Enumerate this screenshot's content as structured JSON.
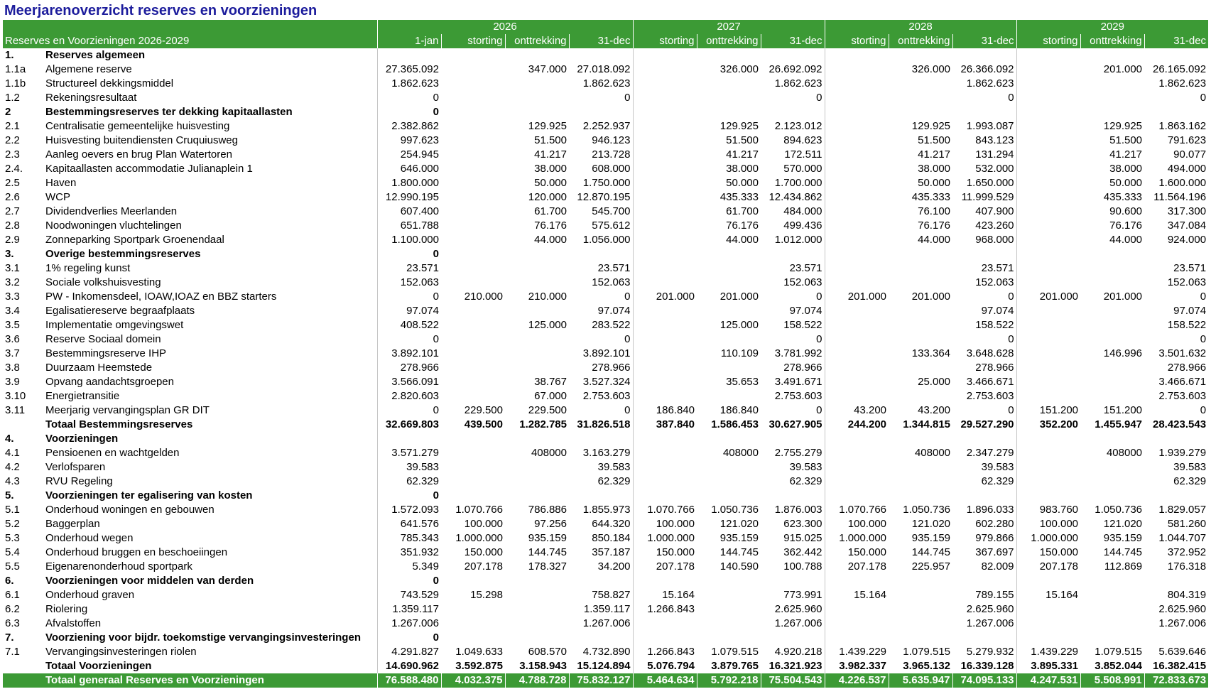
{
  "title": "Meerjarenoverzicht reserves en voorzieningen",
  "header": {
    "years": [
      "2026",
      "2027",
      "2028",
      "2029"
    ],
    "label": "Reserves en Voorzieningen 2026-2029",
    "columns": [
      "1-jan",
      "storting",
      "onttrekking",
      "31-dec",
      "storting",
      "onttrekking",
      "31-dec",
      "storting",
      "onttrekking",
      "31-dec",
      "storting",
      "onttrekking",
      "31-dec"
    ]
  },
  "rows": [
    {
      "code": "1.",
      "name": "Reserves algemeen",
      "bold": true,
      "cells": [
        null,
        null,
        null,
        null,
        null,
        null,
        null,
        null,
        null,
        null,
        null,
        null,
        null
      ]
    },
    {
      "code": "1.1a",
      "name": "Algemene reserve",
      "cells": [
        "27.365.092",
        null,
        "347.000",
        "27.018.092",
        null,
        "326.000",
        "26.692.092",
        null,
        "326.000",
        "26.366.092",
        null,
        "201.000",
        "26.165.092"
      ]
    },
    {
      "code": "1.1b",
      "name": "Structureel dekkingsmiddel",
      "cells": [
        "1.862.623",
        null,
        null,
        "1.862.623",
        null,
        null,
        "1.862.623",
        null,
        null,
        "1.862.623",
        null,
        null,
        "1.862.623"
      ]
    },
    {
      "code": "1.2",
      "name": "Rekeningsresultaat",
      "cells": [
        "0",
        null,
        null,
        "0",
        null,
        null,
        "0",
        null,
        null,
        "0",
        null,
        null,
        "0"
      ]
    },
    {
      "code": "2",
      "name": "Bestemmingsreserves ter dekking kapitaallasten",
      "bold": true,
      "cells": [
        "0",
        null,
        null,
        null,
        null,
        null,
        null,
        null,
        null,
        null,
        null,
        null,
        null
      ]
    },
    {
      "code": "2.1",
      "name": "Centralisatie gemeentelijke huisvesting",
      "cells": [
        "2.382.862",
        null,
        "129.925",
        "2.252.937",
        null,
        "129.925",
        "2.123.012",
        null,
        "129.925",
        "1.993.087",
        null,
        "129.925",
        "1.863.162"
      ]
    },
    {
      "code": "2.2",
      "name": "Huisvesting buitendiensten Cruquiusweg",
      "cells": [
        "997.623",
        null,
        "51.500",
        "946.123",
        null,
        "51.500",
        "894.623",
        null,
        "51.500",
        "843.123",
        null,
        "51.500",
        "791.623"
      ]
    },
    {
      "code": "2.3",
      "name": "Aanleg oevers en brug Plan Watertoren",
      "cells": [
        "254.945",
        null,
        "41.217",
        "213.728",
        null,
        "41.217",
        "172.511",
        null,
        "41.217",
        "131.294",
        null,
        "41.217",
        "90.077"
      ]
    },
    {
      "code": "2.4.",
      "name": "Kapitaallasten accommodatie Julianaplein 1",
      "cells": [
        "646.000",
        null,
        "38.000",
        "608.000",
        null,
        "38.000",
        "570.000",
        null,
        "38.000",
        "532.000",
        null,
        "38.000",
        "494.000"
      ]
    },
    {
      "code": "2.5",
      "name": "Haven",
      "cells": [
        "1.800.000",
        null,
        "50.000",
        "1.750.000",
        null,
        "50.000",
        "1.700.000",
        null,
        "50.000",
        "1.650.000",
        null,
        "50.000",
        "1.600.000"
      ]
    },
    {
      "code": "2.6",
      "name": "WCP",
      "cells": [
        "12.990.195",
        null,
        "120.000",
        "12.870.195",
        null,
        "435.333",
        "12.434.862",
        null,
        "435.333",
        "11.999.529",
        null,
        "435.333",
        "11.564.196"
      ]
    },
    {
      "code": "2.7",
      "name": "Dividendverlies Meerlanden",
      "cells": [
        "607.400",
        null,
        "61.700",
        "545.700",
        null,
        "61.700",
        "484.000",
        null,
        "76.100",
        "407.900",
        null,
        "90.600",
        "317.300"
      ]
    },
    {
      "code": "2.8",
      "name": "Noodwoningen vluchtelingen",
      "cells": [
        "651.788",
        null,
        "76.176",
        "575.612",
        null,
        "76.176",
        "499.436",
        null,
        "76.176",
        "423.260",
        null,
        "76.176",
        "347.084"
      ]
    },
    {
      "code": "2.9",
      "name": "Zonneparking Sportpark Groenendaal",
      "cells": [
        "1.100.000",
        null,
        "44.000",
        "1.056.000",
        null,
        "44.000",
        "1.012.000",
        null,
        "44.000",
        "968.000",
        null,
        "44.000",
        "924.000"
      ]
    },
    {
      "code": "3.",
      "name": "Overige bestemmingsreserves",
      "bold": true,
      "cells": [
        "0",
        null,
        null,
        null,
        null,
        null,
        null,
        null,
        null,
        null,
        null,
        null,
        null
      ]
    },
    {
      "code": "3.1",
      "name": "1% regeling kunst",
      "cells": [
        "23.571",
        null,
        null,
        "23.571",
        null,
        null,
        "23.571",
        null,
        null,
        "23.571",
        null,
        null,
        "23.571"
      ]
    },
    {
      "code": "3.2",
      "name": "Sociale volkshuisvesting",
      "cells": [
        "152.063",
        null,
        null,
        "152.063",
        null,
        null,
        "152.063",
        null,
        null,
        "152.063",
        null,
        null,
        "152.063"
      ]
    },
    {
      "code": "3.3",
      "name": "PW - Inkomensdeel, IOAW,IOAZ en BBZ starters",
      "cells": [
        "0",
        "210.000",
        "210.000",
        "0",
        "201.000",
        "201.000",
        "0",
        "201.000",
        "201.000",
        "0",
        "201.000",
        "201.000",
        "0"
      ]
    },
    {
      "code": "3.4",
      "name": "Egalisatiereserve begraafplaats",
      "cells": [
        "97.074",
        null,
        null,
        "97.074",
        null,
        null,
        "97.074",
        null,
        null,
        "97.074",
        null,
        null,
        "97.074"
      ]
    },
    {
      "code": "3.5",
      "name": "Implementatie omgevingswet",
      "cells": [
        "408.522",
        null,
        "125.000",
        "283.522",
        null,
        "125.000",
        "158.522",
        null,
        null,
        "158.522",
        null,
        null,
        "158.522"
      ]
    },
    {
      "code": "3.6",
      "name": "Reserve Sociaal domein",
      "cells": [
        "0",
        null,
        null,
        "0",
        null,
        null,
        "0",
        null,
        null,
        "0",
        null,
        null,
        "0"
      ]
    },
    {
      "code": "3.7",
      "name": "Bestemmingsreserve IHP",
      "cells": [
        "3.892.101",
        null,
        null,
        "3.892.101",
        null,
        "110.109",
        "3.781.992",
        null,
        "133.364",
        "3.648.628",
        null,
        "146.996",
        "3.501.632"
      ]
    },
    {
      "code": "3.8",
      "name": "Duurzaam Heemstede",
      "cells": [
        "278.966",
        null,
        null,
        "278.966",
        null,
        null,
        "278.966",
        null,
        null,
        "278.966",
        null,
        null,
        "278.966"
      ]
    },
    {
      "code": "3.9",
      "name": "Opvang aandachtsgroepen",
      "cells": [
        "3.566.091",
        null,
        "38.767",
        "3.527.324",
        null,
        "35.653",
        "3.491.671",
        null,
        "25.000",
        "3.466.671",
        null,
        null,
        "3.466.671"
      ]
    },
    {
      "code": "3.10",
      "name": "Energietransitie",
      "cells": [
        "2.820.603",
        null,
        "67.000",
        "2.753.603",
        null,
        null,
        "2.753.603",
        null,
        null,
        "2.753.603",
        null,
        null,
        "2.753.603"
      ]
    },
    {
      "code": "3.11",
      "name": "Meerjarig vervangingsplan GR DIT",
      "cells": [
        "0",
        "229.500",
        "229.500",
        "0",
        "186.840",
        "186.840",
        "0",
        "43.200",
        "43.200",
        "0",
        "151.200",
        "151.200",
        "0"
      ]
    },
    {
      "name": "Totaal Bestemmingsreserves",
      "bold": true,
      "cells": [
        "32.669.803",
        "439.500",
        "1.282.785",
        "31.826.518",
        "387.840",
        "1.586.453",
        "30.627.905",
        "244.200",
        "1.344.815",
        "29.527.290",
        "352.200",
        "1.455.947",
        "28.423.543"
      ]
    },
    {
      "code": "4.",
      "name": "Voorzieningen",
      "bold": true,
      "cells": [
        null,
        null,
        null,
        null,
        null,
        null,
        null,
        null,
        null,
        null,
        null,
        null,
        null
      ]
    },
    {
      "code": "4.1",
      "name": "Pensioenen en wachtgelden",
      "cells": [
        "3.571.279",
        null,
        "408000",
        "3.163.279",
        null,
        "408000",
        "2.755.279",
        null,
        "408000",
        "2.347.279",
        null,
        "408000",
        "1.939.279"
      ]
    },
    {
      "code": "4.2",
      "name": "Verlofsparen",
      "cells": [
        "39.583",
        null,
        null,
        "39.583",
        null,
        null,
        "39.583",
        null,
        null,
        "39.583",
        null,
        null,
        "39.583"
      ]
    },
    {
      "code": "4.3",
      "name": "RVU Regeling",
      "cells": [
        "62.329",
        null,
        null,
        "62.329",
        null,
        null,
        "62.329",
        null,
        null,
        "62.329",
        null,
        null,
        "62.329"
      ]
    },
    {
      "code": "5.",
      "name": "Voorzieningen ter egalisering van kosten",
      "bold": true,
      "cells": [
        "0",
        null,
        null,
        null,
        null,
        null,
        null,
        null,
        null,
        null,
        null,
        null,
        null
      ]
    },
    {
      "code": "5.1",
      "name": "Onderhoud woningen en gebouwen",
      "cells": [
        "1.572.093",
        "1.070.766",
        "786.886",
        "1.855.973",
        "1.070.766",
        "1.050.736",
        "1.876.003",
        "1.070.766",
        "1.050.736",
        "1.896.033",
        "983.760",
        "1.050.736",
        "1.829.057"
      ]
    },
    {
      "code": "5.2",
      "name": "Baggerplan",
      "cells": [
        "641.576",
        "100.000",
        "97.256",
        "644.320",
        "100.000",
        "121.020",
        "623.300",
        "100.000",
        "121.020",
        "602.280",
        "100.000",
        "121.020",
        "581.260"
      ]
    },
    {
      "code": "5.3",
      "name": "Onderhoud wegen",
      "cells": [
        "785.343",
        "1.000.000",
        "935.159",
        "850.184",
        "1.000.000",
        "935.159",
        "915.025",
        "1.000.000",
        "935.159",
        "979.866",
        "1.000.000",
        "935.159",
        "1.044.707"
      ]
    },
    {
      "code": "5.4",
      "name": "Onderhoud bruggen en beschoeiingen",
      "cells": [
        "351.932",
        "150.000",
        "144.745",
        "357.187",
        "150.000",
        "144.745",
        "362.442",
        "150.000",
        "144.745",
        "367.697",
        "150.000",
        "144.745",
        "372.952"
      ]
    },
    {
      "code": "5.5",
      "name": "Eigenarenonderhoud sportpark",
      "cells": [
        "5.349",
        "207.178",
        "178.327",
        "34.200",
        "207.178",
        "140.590",
        "100.788",
        "207.178",
        "225.957",
        "82.009",
        "207.178",
        "112.869",
        "176.318"
      ]
    },
    {
      "code": "6.",
      "name": "Voorzieningen voor middelen van derden",
      "bold": true,
      "cells": [
        "0",
        null,
        null,
        null,
        null,
        null,
        null,
        null,
        null,
        null,
        null,
        null,
        null
      ]
    },
    {
      "code": "6.1",
      "name": "Onderhoud graven",
      "cells": [
        "743.529",
        "15.298",
        null,
        "758.827",
        "15.164",
        null,
        "773.991",
        "15.164",
        null,
        "789.155",
        "15.164",
        null,
        "804.319"
      ]
    },
    {
      "code": "6.2",
      "name": "Riolering",
      "cells": [
        "1.359.117",
        null,
        null,
        "1.359.117",
        "1.266.843",
        null,
        "2.625.960",
        null,
        null,
        "2.625.960",
        null,
        null,
        "2.625.960"
      ]
    },
    {
      "code": "6.3",
      "name": "Afvalstoffen",
      "cells": [
        "1.267.006",
        null,
        null,
        "1.267.006",
        null,
        null,
        "1.267.006",
        null,
        null,
        "1.267.006",
        null,
        null,
        "1.267.006"
      ]
    },
    {
      "code": "7.",
      "name": "Voorziening voor bijdr. toekomstige vervangingsinvesteringen",
      "bold": true,
      "cells": [
        "0",
        null,
        null,
        null,
        null,
        null,
        null,
        null,
        null,
        null,
        null,
        null,
        null
      ]
    },
    {
      "code": "7.1",
      "name": "Vervangingsinvesteringen riolen",
      "cells": [
        "4.291.827",
        "1.049.633",
        "608.570",
        "4.732.890",
        "1.266.843",
        "1.079.515",
        "4.920.218",
        "1.439.229",
        "1.079.515",
        "5.279.932",
        "1.439.229",
        "1.079.515",
        "5.639.646"
      ]
    },
    {
      "name": "Totaal Voorzieningen",
      "bold": true,
      "cells": [
        "14.690.962",
        "3.592.875",
        "3.158.943",
        "15.124.894",
        "5.076.794",
        "3.879.765",
        "16.321.923",
        "3.982.337",
        "3.965.132",
        "16.339.128",
        "3.895.331",
        "3.852.044",
        "16.382.415"
      ]
    },
    {
      "name": "Totaal generaal Reserves en Voorzieningen",
      "highlight": true,
      "cells": [
        "76.588.480",
        "4.032.375",
        "4.788.728",
        "75.832.127",
        "5.464.634",
        "5.792.218",
        "75.504.543",
        "4.226.537",
        "5.635.947",
        "74.095.133",
        "4.247.531",
        "5.508.991",
        "72.833.673"
      ]
    }
  ]
}
